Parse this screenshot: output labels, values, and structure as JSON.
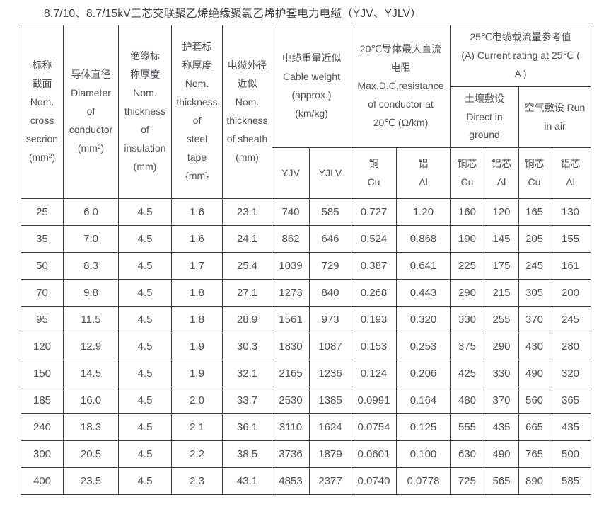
{
  "page_title": "8.7/10、8.7/15kV三芯交联聚乙烯绝缘聚氯乙烯护套电力电缆（YJV、YJLV）",
  "colors": {
    "background": "#ffffff",
    "border": "#3b3b3b",
    "text": "#4e5157",
    "title_text": "#3e3e3e"
  },
  "table": {
    "header": {
      "nom_cross_section": "标称\n截面\nNom.\ncross\nsecrion\n(mm²)",
      "conductor_diameter": "导体直径\nDiameter\nof\nconductor\n(mm²)",
      "insulation_thickness": "绝缘标\n称厚度\nNom.\nthickness\nof\ninsulation\n(mm)",
      "steel_tape_thickness": "护套标\n称厚度\nNom.\nthickness\nof\nsteel\ntape\n{mm}",
      "cable_od": "电缆外径\n近似\nNom.\nthickness\nof sheath\n(mm)",
      "cable_weight_group": "电缆重量近似\nCable weight\n(approx.)\n(km/kg)",
      "dc_resistance_group": "20℃导体最大直流\n电阻\nMax.D.C,resistance\nof conductor at\n20℃ (Ω/km)",
      "current_rating_group": "25℃电缆载流量参考值\n(A) Current rating at 25℃ (\nA )",
      "direct_in_ground": "土壤敷设\nDirect in\nground",
      "run_in_air": "空气敷设 Run\nin air",
      "sub": {
        "yjv": "YJV",
        "yjlv": "YJLV",
        "cu": "铜\nCu",
        "al": "铝\nAl",
        "cu_core": "铜芯\nCu",
        "al_core": "铝芯\nAl"
      }
    },
    "rows": [
      [
        "25",
        "6.0",
        "4.5",
        "1.6",
        "23.1",
        "740",
        "585",
        "0.727",
        "1.20",
        "160",
        "120",
        "165",
        "130"
      ],
      [
        "35",
        "7.0",
        "4.5",
        "1.6",
        "24.1",
        "862",
        "646",
        "0.524",
        "0.868",
        "190",
        "145",
        "205",
        "155"
      ],
      [
        "50",
        "8.3",
        "4.5",
        "1.7",
        "25.4",
        "1039",
        "729",
        "0.387",
        "0.641",
        "225",
        "175",
        "245",
        "161"
      ],
      [
        "70",
        "9.8",
        "4.5",
        "1.8",
        "27.1",
        "1273",
        "840",
        "0.268",
        "0.443",
        "290",
        "215",
        "305",
        "200"
      ],
      [
        "95",
        "11.5",
        "4.5",
        "1.8",
        "28.9",
        "1561",
        "973",
        "0.193",
        "0.320",
        "330",
        "255",
        "370",
        "245"
      ],
      [
        "120",
        "12.9",
        "4.5",
        "1.9",
        "30.3",
        "1830",
        "1087",
        "0.153",
        "0.253",
        "375",
        "290",
        "430",
        "280"
      ],
      [
        "150",
        "14.5",
        "4.5",
        "1.9",
        "32.1",
        "2165",
        "1236",
        "0.124",
        "0.206",
        "425",
        "330",
        "490",
        "320"
      ],
      [
        "185",
        "16.0",
        "4.5",
        "2.0",
        "33.7",
        "2530",
        "1385",
        "0.0991",
        "0.164",
        "480",
        "370",
        "560",
        "365"
      ],
      [
        "240",
        "18.3",
        "4.5",
        "2.1",
        "36.1",
        "3110",
        "1624",
        "0.0754",
        "0.125",
        "555",
        "435",
        "665",
        "435"
      ],
      [
        "300",
        "20.5",
        "4.5",
        "2.2",
        "38.5",
        "3736",
        "1879",
        "0.0601",
        "0.100",
        "630",
        "490",
        "765",
        "500"
      ],
      [
        "400",
        "23.5",
        "4.5",
        "2.3",
        "43.1",
        "4853",
        "2377",
        "0.0740",
        "0.0778",
        "725",
        "565",
        "890",
        "585"
      ]
    ]
  }
}
